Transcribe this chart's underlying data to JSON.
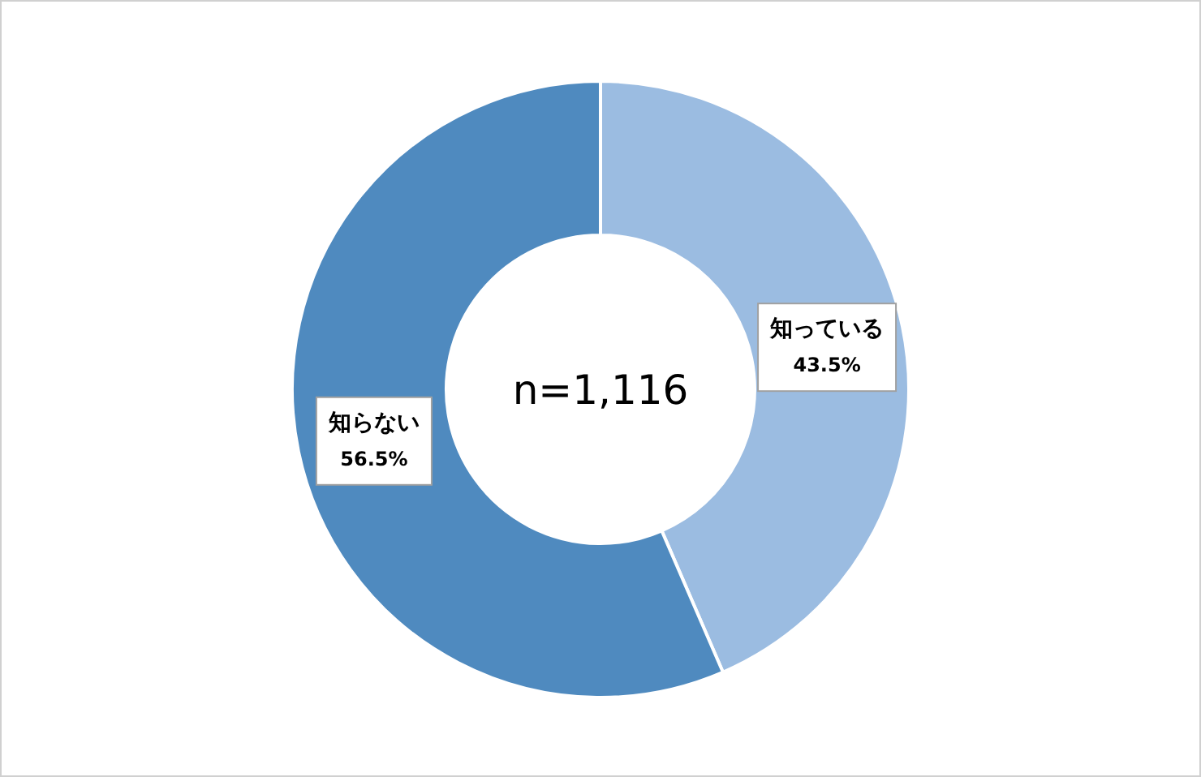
{
  "chart_data": {
    "type": "donut",
    "categories": [
      "知っている",
      "知らない"
    ],
    "values": [
      43.5,
      56.5
    ],
    "colors": [
      "#9bbce1",
      "#4f8abf"
    ],
    "value_labels": [
      "43.5%",
      "56.5%"
    ],
    "annotations": [
      "n=1,116"
    ],
    "legend": false
  }
}
